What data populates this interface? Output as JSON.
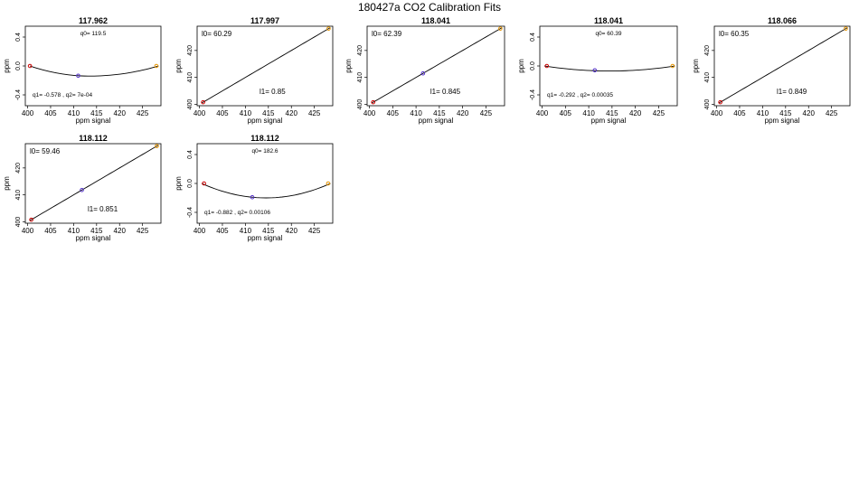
{
  "page_title": "180427a   CO2 Calibration Fits",
  "chart_data": [
    {
      "type": "line",
      "title": "117.962",
      "xlabel": "ppm signal",
      "ylabel": "ppm",
      "xlim": [
        399.5,
        429
      ],
      "ylim": [
        -0.55,
        0.55
      ],
      "xticks": [
        400,
        405,
        410,
        415,
        420,
        425
      ],
      "yticks": [
        -0.4,
        0.0,
        0.4
      ],
      "yticklabels": [
        "-0.4",
        "0.0",
        "0.4"
      ],
      "fit": "quadratic",
      "curve": {
        "a": 0,
        "vx": 413.5,
        "k": -0.14,
        "x_start": 400.5,
        "x_end": 428.5
      },
      "points": [
        {
          "x": 400.5,
          "y": 0.0,
          "color": "#cc0000"
        },
        {
          "x": 411.0,
          "y": -0.135,
          "color": "#5533cc"
        },
        {
          "x": 428.0,
          "y": 0.0,
          "color": "#e69500"
        }
      ],
      "annotations": [
        {
          "text": "q0= 119.5",
          "pos": "top-center"
        },
        {
          "text": "q1= -0.578 , q2= 7e-04",
          "pos": "bottom-left"
        }
      ]
    },
    {
      "type": "line",
      "title": "117.997",
      "xlabel": "ppm signal",
      "ylabel": "ppm",
      "xlim": [
        399.5,
        429
      ],
      "ylim": [
        399.5,
        429
      ],
      "xticks": [
        400,
        405,
        410,
        415,
        420,
        425
      ],
      "yticks": [
        400,
        410,
        420
      ],
      "yticklabels": [
        "400",
        "410",
        "420"
      ],
      "fit": "linear",
      "curve": {
        "x_start": 400.5,
        "x_end": 428.5
      },
      "points": [
        {
          "x": 400.8,
          "y": 400.8,
          "color": "#cc0000"
        },
        {
          "x": 428.1,
          "y": 428.1,
          "color": "#e69500"
        }
      ],
      "annotations": [
        {
          "text": "l0=  60.29",
          "pos": "top-left"
        },
        {
          "text": "l1=  0.85",
          "pos": "mid-right"
        }
      ]
    },
    {
      "type": "line",
      "title": "118.041",
      "xlabel": "ppm signal",
      "ylabel": "ppm",
      "xlim": [
        399.5,
        429
      ],
      "ylim": [
        399.5,
        429
      ],
      "xticks": [
        400,
        405,
        410,
        415,
        420,
        425
      ],
      "yticks": [
        400,
        410,
        420
      ],
      "yticklabels": [
        "400",
        "410",
        "420"
      ],
      "fit": "linear",
      "curve": {
        "x_start": 400.5,
        "x_end": 428.5
      },
      "points": [
        {
          "x": 400.8,
          "y": 400.8,
          "color": "#cc0000"
        },
        {
          "x": 411.5,
          "y": 411.5,
          "color": "#5533cc"
        },
        {
          "x": 428.1,
          "y": 428.1,
          "color": "#e69500"
        }
      ],
      "annotations": [
        {
          "text": "l0=  62.39",
          "pos": "top-left"
        },
        {
          "text": "l1=  0.845",
          "pos": "mid-right"
        }
      ]
    },
    {
      "type": "line",
      "title": "118.041",
      "xlabel": "ppm signal",
      "ylabel": "ppm",
      "xlim": [
        399.5,
        429
      ],
      "ylim": [
        -0.55,
        0.55
      ],
      "xticks": [
        400,
        405,
        410,
        415,
        420,
        425
      ],
      "yticks": [
        -0.4,
        0.0,
        0.4
      ],
      "yticklabels": [
        "-0.4",
        "0.0",
        "0.4"
      ],
      "fit": "quadratic",
      "curve": {
        "a": 0,
        "vx": 414.5,
        "k": -0.07,
        "x_start": 400.5,
        "x_end": 428.5
      },
      "points": [
        {
          "x": 401.0,
          "y": 0.0,
          "color": "#cc0000"
        },
        {
          "x": 411.3,
          "y": -0.06,
          "color": "#5533cc"
        },
        {
          "x": 428.0,
          "y": 0.0,
          "color": "#e69500"
        }
      ],
      "annotations": [
        {
          "text": "q0= 60.39",
          "pos": "top-center"
        },
        {
          "text": "q1= -0.292 , q2= 0.00035",
          "pos": "bottom-left"
        }
      ]
    },
    {
      "type": "line",
      "title": "118.066",
      "xlabel": "ppm signal",
      "ylabel": "ppm",
      "xlim": [
        399.5,
        429
      ],
      "ylim": [
        399.5,
        429
      ],
      "xticks": [
        400,
        405,
        410,
        415,
        420,
        425
      ],
      "yticks": [
        400,
        410,
        420
      ],
      "yticklabels": [
        "400",
        "410",
        "420"
      ],
      "fit": "linear",
      "curve": {
        "x_start": 400.5,
        "x_end": 428.5
      },
      "points": [
        {
          "x": 400.8,
          "y": 400.8,
          "color": "#cc0000"
        },
        {
          "x": 428.1,
          "y": 428.1,
          "color": "#e69500"
        }
      ],
      "annotations": [
        {
          "text": "l0=  60.35",
          "pos": "top-left"
        },
        {
          "text": "l1=  0.849",
          "pos": "mid-right"
        }
      ]
    },
    {
      "type": "line",
      "title": "118.112",
      "xlabel": "ppm signal",
      "ylabel": "ppm",
      "xlim": [
        399.5,
        429
      ],
      "ylim": [
        399.5,
        429
      ],
      "xticks": [
        400,
        405,
        410,
        415,
        420,
        425
      ],
      "yticks": [
        400,
        410,
        420
      ],
      "yticklabels": [
        "400",
        "410",
        "420"
      ],
      "fit": "linear",
      "curve": {
        "x_start": 400.5,
        "x_end": 428.5
      },
      "points": [
        {
          "x": 400.8,
          "y": 400.8,
          "color": "#cc0000"
        },
        {
          "x": 411.8,
          "y": 411.8,
          "color": "#5533cc"
        },
        {
          "x": 428.1,
          "y": 428.1,
          "color": "#e69500"
        }
      ],
      "annotations": [
        {
          "text": "l0=  59.46",
          "pos": "top-left"
        },
        {
          "text": "l1=  0.851",
          "pos": "mid-right"
        }
      ]
    },
    {
      "type": "line",
      "title": "118.112",
      "xlabel": "ppm signal",
      "ylabel": "ppm",
      "xlim": [
        399.5,
        429
      ],
      "ylim": [
        -0.55,
        0.55
      ],
      "xticks": [
        400,
        405,
        410,
        415,
        420,
        425
      ],
      "yticks": [
        -0.4,
        0.0,
        0.4
      ],
      "yticklabels": [
        "-0.4",
        "0.0",
        "0.4"
      ],
      "fit": "quadratic",
      "curve": {
        "a": 0,
        "vx": 414.5,
        "k": -0.2,
        "x_start": 400.5,
        "x_end": 428.5
      },
      "points": [
        {
          "x": 401.0,
          "y": 0.0,
          "color": "#cc0000"
        },
        {
          "x": 411.5,
          "y": -0.19,
          "color": "#5533cc"
        },
        {
          "x": 428.0,
          "y": 0.0,
          "color": "#e69500"
        }
      ],
      "annotations": [
        {
          "text": "q0= 182.6",
          "pos": "top-center"
        },
        {
          "text": "q1= -0.882 , q2= 0.00106",
          "pos": "bottom-left"
        }
      ]
    }
  ]
}
